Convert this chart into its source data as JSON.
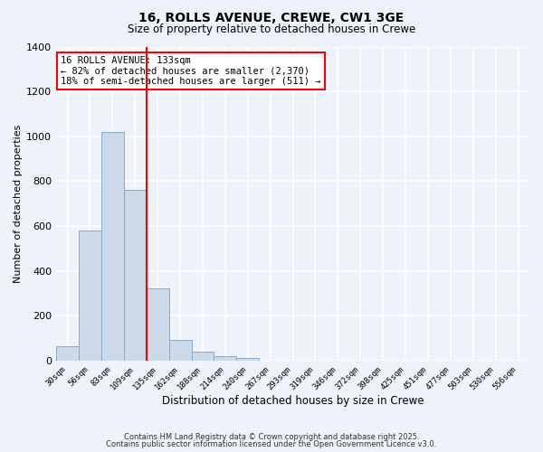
{
  "title": "16, ROLLS AVENUE, CREWE, CW1 3GE",
  "subtitle": "Size of property relative to detached houses in Crewe",
  "xlabel": "Distribution of detached houses by size in Crewe",
  "ylabel": "Number of detached properties",
  "bar_labels": [
    "30sqm",
    "56sqm",
    "83sqm",
    "109sqm",
    "135sqm",
    "162sqm",
    "188sqm",
    "214sqm",
    "240sqm",
    "267sqm",
    "293sqm",
    "319sqm",
    "346sqm",
    "372sqm",
    "398sqm",
    "425sqm",
    "451sqm",
    "477sqm",
    "503sqm",
    "530sqm",
    "556sqm"
  ],
  "bar_values": [
    65,
    580,
    1020,
    760,
    320,
    90,
    38,
    20,
    10,
    0,
    0,
    0,
    0,
    0,
    0,
    0,
    0,
    0,
    0,
    0,
    0
  ],
  "bar_color": "#ccd9e8",
  "bar_edge_color": "#88aac8",
  "vline_x": 3.5,
  "vline_color": "red",
  "annotation_title": "16 ROLLS AVENUE: 133sqm",
  "annotation_line1": "← 82% of detached houses are smaller (2,370)",
  "annotation_line2": "18% of semi-detached houses are larger (511) →",
  "annotation_box_color": "white",
  "annotation_box_edge": "red",
  "ylim": [
    0,
    1400
  ],
  "yticks": [
    0,
    200,
    400,
    600,
    800,
    1000,
    1200,
    1400
  ],
  "background_color": "#eef2fb",
  "grid_color": "white",
  "footer_line1": "Contains HM Land Registry data © Crown copyright and database right 2025.",
  "footer_line2": "Contains public sector information licensed under the Open Government Licence v3.0."
}
